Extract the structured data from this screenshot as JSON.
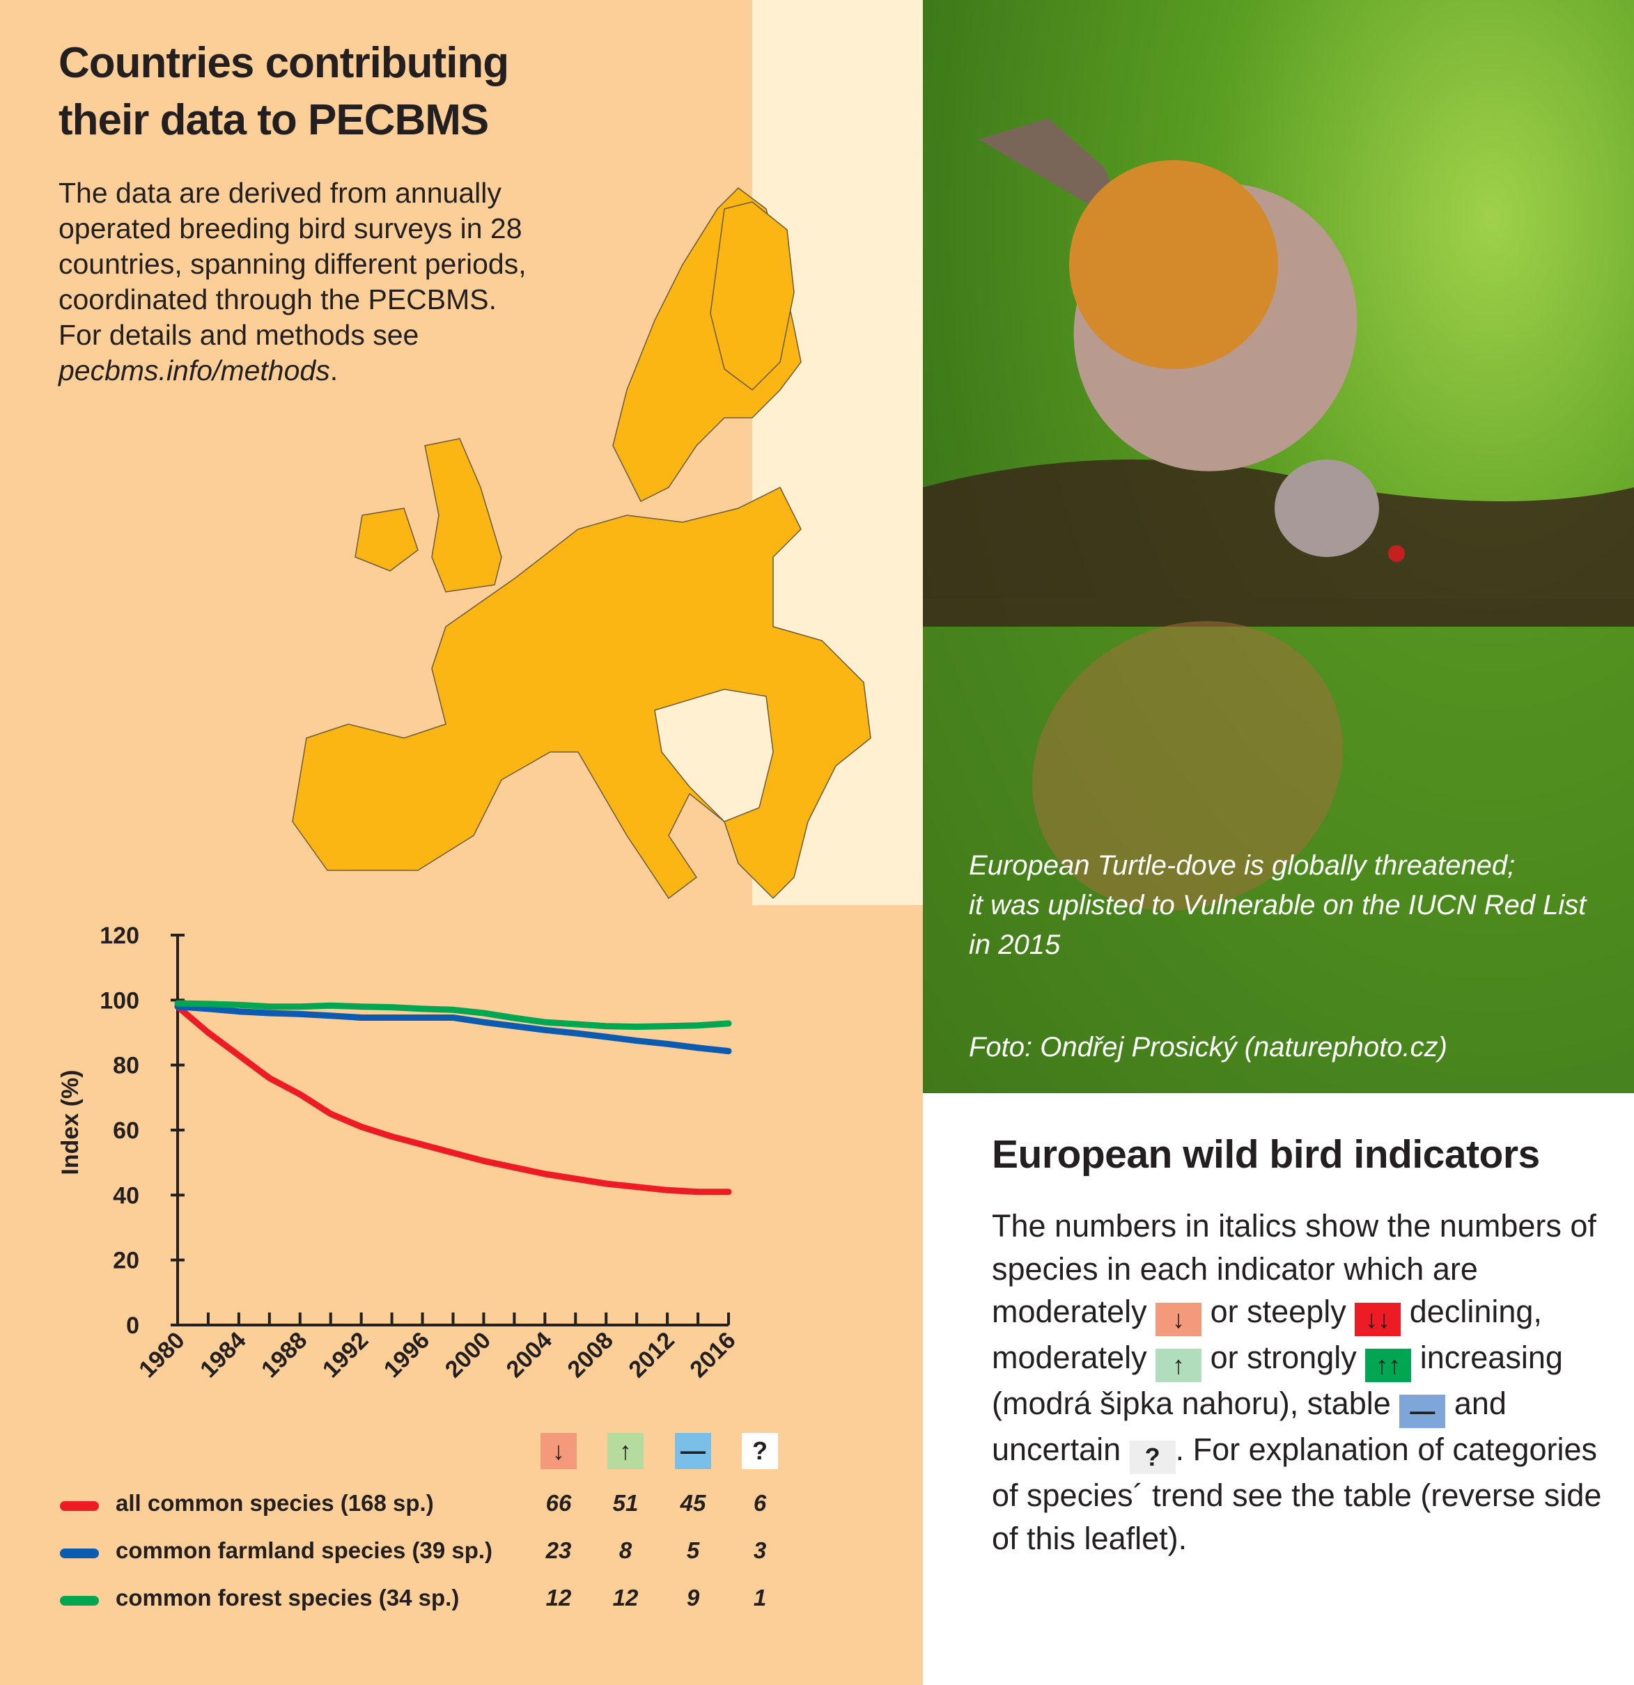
{
  "left": {
    "title_line1": "Countries contributing",
    "title_line2": "their data to PECBMS",
    "intro_text": "The data are derived from annually operated breeding bird surveys in 28 countries, spanning different periods, coordinated through the PECBMS. For details and methods see ",
    "intro_link": "pecbms.info/methods",
    "intro_end": "."
  },
  "map": {
    "participating_color": "#FBB614",
    "non_participating_color": "#FEF0D0"
  },
  "chart_data": {
    "type": "line",
    "title": "",
    "xlabel": "",
    "ylabel": "Index (%)",
    "xlim": [
      1980,
      2016
    ],
    "ylim": [
      0,
      120
    ],
    "x_ticks": [
      "1980",
      "1984",
      "1988",
      "1992",
      "1996",
      "2000",
      "2004",
      "2008",
      "2012",
      "2016"
    ],
    "y_ticks": [
      "0",
      "20",
      "40",
      "60",
      "80",
      "100",
      "120"
    ],
    "grid": false,
    "x": [
      1980,
      1982,
      1984,
      1986,
      1988,
      1990,
      1992,
      1994,
      1996,
      1998,
      2000,
      2002,
      2004,
      2006,
      2008,
      2010,
      2012,
      2014,
      2016
    ],
    "series": [
      {
        "name": "all common species (168 sp.)",
        "color": "#ED1C24",
        "values": [
          98,
          90,
          83,
          76,
          71,
          65,
          61,
          58,
          55.5,
          53,
          50.5,
          48.5,
          46.5,
          45,
          43.5,
          42.5,
          41.5,
          41,
          41
        ]
      },
      {
        "name": "common farmland species (39 sp.)",
        "color": "#0B5BB0",
        "values": [
          98,
          97.3,
          96.5,
          96,
          95.7,
          95.2,
          94.6,
          94.6,
          94.6,
          94.6,
          93.2,
          92,
          90.8,
          89.8,
          88.7,
          87.5,
          86.5,
          85.3,
          84.3
        ]
      },
      {
        "name": "common forest species (34 sp.)",
        "color": "#00A651",
        "values": [
          99,
          98.8,
          98.5,
          98,
          98,
          98.3,
          98,
          97.8,
          97.3,
          97,
          96,
          94.5,
          93.2,
          92.6,
          92,
          91.8,
          92,
          92.2,
          92.8
        ]
      }
    ]
  },
  "legend": {
    "categories": [
      {
        "symbol": "↓",
        "color": "#F4997A",
        "name": "arrow-down"
      },
      {
        "symbol": "↑",
        "color": "#B5DC9E",
        "name": "arrow-up"
      },
      {
        "symbol": "—",
        "color": "#7ABFE8",
        "name": "stable"
      },
      {
        "symbol": "?",
        "color": "#FFFFFF",
        "name": "uncertain"
      }
    ],
    "rows": [
      {
        "label": "all common species (168 sp.)",
        "color": "#ED1C24",
        "counts": [
          "66",
          "51",
          "45",
          "6"
        ]
      },
      {
        "label": "common farmland species (39 sp.)",
        "color": "#0B5BB0",
        "counts": [
          "23",
          "8",
          "5",
          "3"
        ]
      },
      {
        "label": "common forest species (34 sp.)",
        "color": "#00A651",
        "counts": [
          "12",
          "12",
          "9",
          "1"
        ]
      }
    ]
  },
  "photo": {
    "caption_line1": "European Turtle-dove is globally threatened;",
    "caption_line2": "it was uplisted to Vulnerable on the IUCN Red List",
    "caption_line3": "in 2015",
    "credit": "Foto: Ondřej Prosický (naturephoto.cz)"
  },
  "right": {
    "title": "European wild bird indicators",
    "t1": "The numbers in italics show the numbers of species in each indicator which are moderately",
    "m1": "↓",
    "t2": "or steeply",
    "m2": "↓↓",
    "t3": "declining, moderately",
    "m3": "↑",
    "t4": "or strongly",
    "m4": "↑↑",
    "t5": "increasing (modrá šipka nahoru), stable",
    "m5": "—",
    "t6": "and uncertain",
    "m6": "?",
    "t7": ". For explanation of categories of species´ trend see the table (reverse side of this leaflet).",
    "colors": {
      "moderate_decline": "#F4997A",
      "steep_decline": "#ED1C24",
      "moderate_increase": "#B2DDBD",
      "strong_increase": "#00A651",
      "stable": "#7FA6D9",
      "uncertain": "#EEEEEE"
    }
  }
}
